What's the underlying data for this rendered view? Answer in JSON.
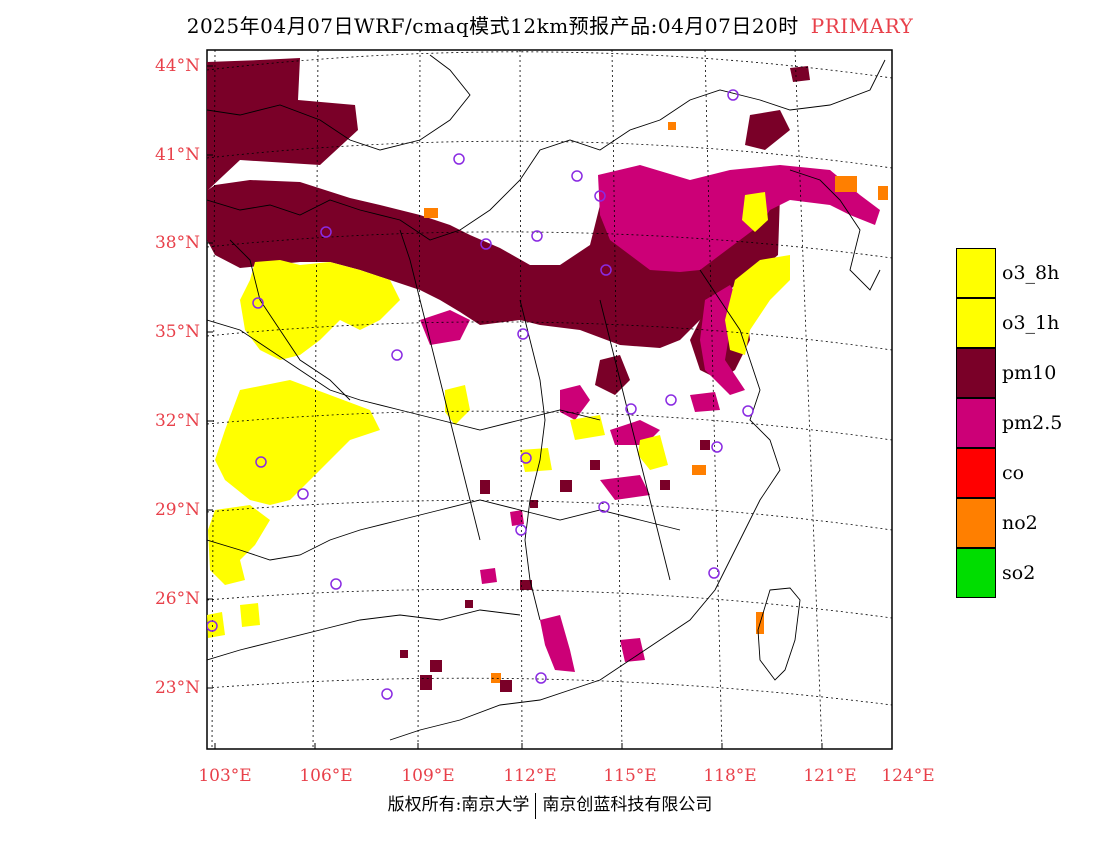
{
  "title": {
    "main": "2025年04月07日WRF/cmaq模式12km预报产品:04月07日20时",
    "tag": "PRIMARY"
  },
  "axes": {
    "lat_labels": [
      "44°N",
      "41°N",
      "38°N",
      "35°N",
      "32°N",
      "29°N",
      "26°N",
      "23°N"
    ],
    "lon_labels": [
      "103°E",
      "106°E",
      "109°E",
      "112°E",
      "115°E",
      "118°E",
      "121°E",
      "124°E"
    ]
  },
  "legend": [
    {
      "label": "o3_8h",
      "color": "#ffff00"
    },
    {
      "label": "o3_1h",
      "color": "#ffff00"
    },
    {
      "label": "pm10",
      "color": "#7a0028"
    },
    {
      "label": "pm2.5",
      "color": "#cc0077"
    },
    {
      "label": "co",
      "color": "#ff0000"
    },
    {
      "label": "no2",
      "color": "#ff7f00"
    },
    {
      "label": "so2",
      "color": "#00dd00"
    }
  ],
  "footer": {
    "left": "版权所有:南京大学",
    "right": "南京创蓝科技有限公司"
  }
}
